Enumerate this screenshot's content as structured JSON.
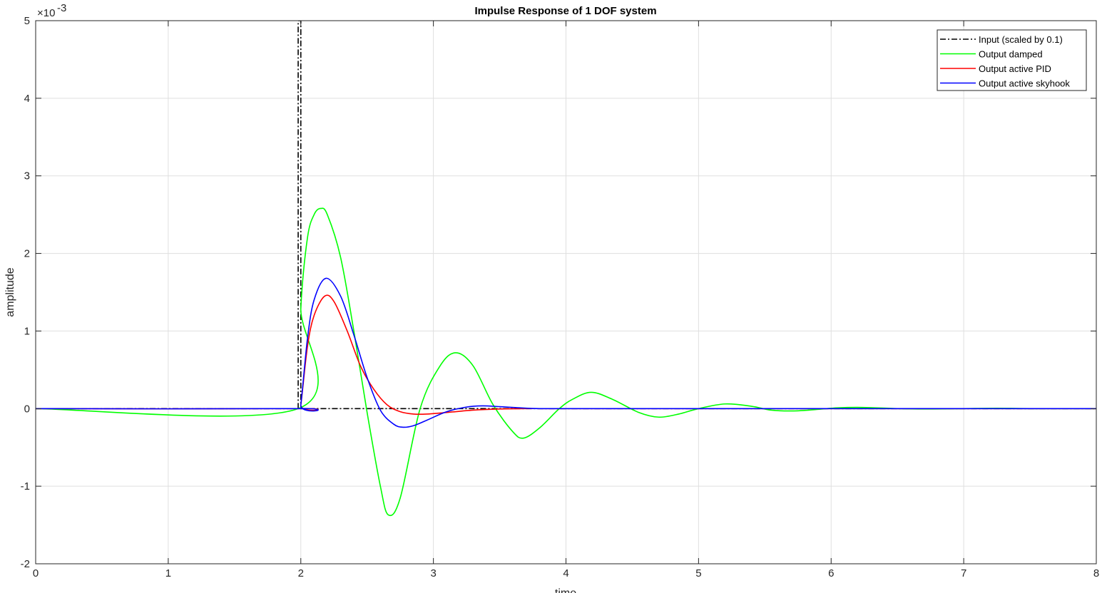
{
  "chart_data": {
    "type": "line",
    "title": "Impulse Response of  1 DOF system",
    "xlabel": "time",
    "ylabel": "amplitude",
    "y_exponent_label": "×10",
    "y_exponent_power": "-3",
    "xlim": [
      0,
      8
    ],
    "ylim": [
      -2,
      5
    ],
    "x_ticks": [
      0,
      1,
      2,
      3,
      4,
      5,
      6,
      7,
      8
    ],
    "y_ticks": [
      -2,
      -1,
      0,
      1,
      2,
      3,
      4,
      5
    ],
    "grid": true,
    "legend_position": "top-right",
    "series": [
      {
        "name": "Input (scaled by 0.1)",
        "color": "#000000",
        "dash": "dashdot",
        "x": [
          0,
          1.98,
          1.98,
          2.0,
          2.0,
          8
        ],
        "y": [
          0,
          0,
          5,
          5,
          0,
          0
        ]
      },
      {
        "name": "Output damped",
        "color": "#00ff00",
        "dash": "solid",
        "x": [
          0,
          1.98,
          2.0,
          2.05,
          2.1,
          2.15,
          2.2,
          2.3,
          2.4,
          2.5,
          2.6,
          2.66,
          2.75,
          2.9,
          3.05,
          3.17,
          3.3,
          3.45,
          3.6,
          3.68,
          3.8,
          3.95,
          4.05,
          4.19,
          4.35,
          4.55,
          4.7,
          4.85,
          5.0,
          5.2,
          5.4,
          5.55,
          5.72,
          5.9,
          6.05,
          6.24,
          6.5,
          6.75,
          7.0,
          7.25,
          7.5,
          8.0
        ],
        "y": [
          0,
          0,
          1.3,
          2.2,
          2.5,
          2.58,
          2.5,
          1.95,
          1.0,
          -0.05,
          -1.0,
          -1.37,
          -1.15,
          0.0,
          0.55,
          0.72,
          0.55,
          0.05,
          -0.3,
          -0.38,
          -0.25,
          0.0,
          0.12,
          0.21,
          0.12,
          -0.05,
          -0.11,
          -0.07,
          0.0,
          0.06,
          0.03,
          -0.02,
          -0.03,
          -0.01,
          0.01,
          0.015,
          0.0,
          -0.005,
          0.0,
          0.005,
          0.0,
          0.0
        ]
      },
      {
        "name": "Output active PID",
        "color": "#ff0000",
        "dash": "solid",
        "x": [
          0,
          1.98,
          2.0,
          2.05,
          2.1,
          2.18,
          2.25,
          2.35,
          2.45,
          2.55,
          2.65,
          2.75,
          2.85,
          2.95,
          3.1,
          3.3,
          3.5,
          3.7,
          3.9,
          4.2,
          8.0
        ],
        "y": [
          0,
          0,
          0.05,
          0.8,
          1.2,
          1.45,
          1.38,
          1.0,
          0.55,
          0.25,
          0.05,
          -0.04,
          -0.07,
          -0.07,
          -0.05,
          -0.02,
          -0.005,
          0.0,
          0.0,
          0.0,
          0.0
        ]
      },
      {
        "name": "Output active skyhook",
        "color": "#0000ff",
        "dash": "solid",
        "x": [
          0,
          1.98,
          2.0,
          2.05,
          2.1,
          2.19,
          2.3,
          2.4,
          2.5,
          2.6,
          2.7,
          2.77,
          2.85,
          2.95,
          3.1,
          3.25,
          3.37,
          3.5,
          3.65,
          3.8,
          4.0,
          4.3,
          8.0
        ],
        "y": [
          0,
          0,
          0.05,
          0.9,
          1.4,
          1.68,
          1.45,
          0.95,
          0.4,
          -0.02,
          -0.2,
          -0.24,
          -0.22,
          -0.15,
          -0.04,
          0.02,
          0.035,
          0.025,
          0.01,
          0.0,
          0.0,
          0.0,
          0.0
        ]
      }
    ]
  }
}
